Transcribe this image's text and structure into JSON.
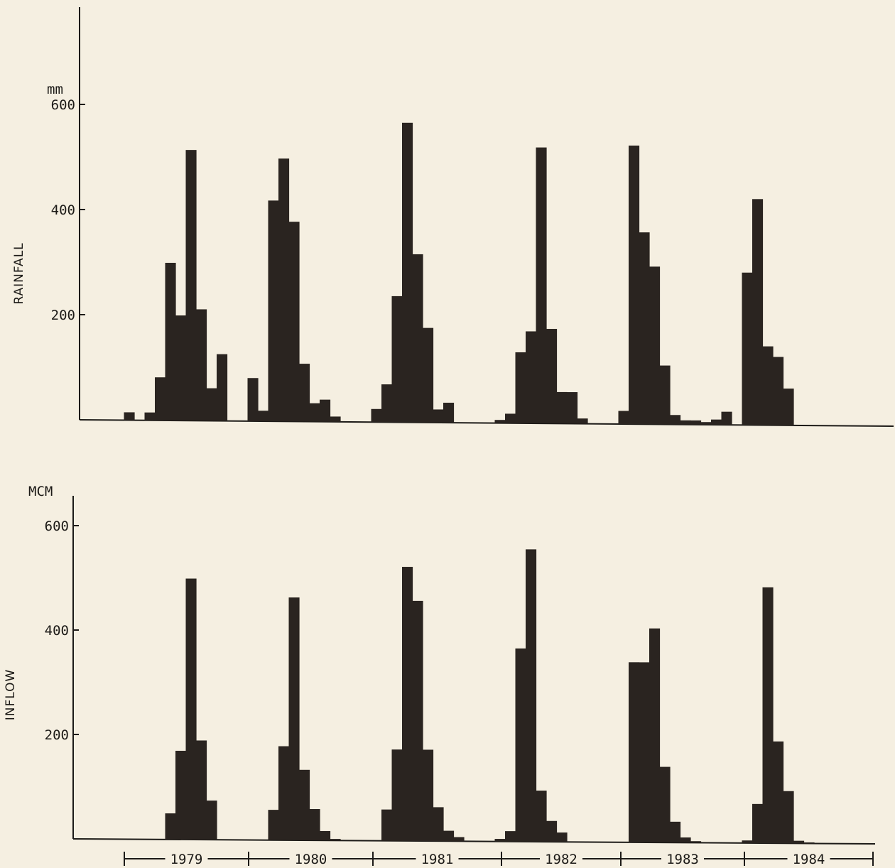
{
  "chart_data": [
    {
      "type": "bar",
      "ylabel": "RAINFALL",
      "unit": "mm",
      "yticks": [
        200,
        400,
        600
      ],
      "ylim": [
        0,
        790
      ],
      "xlabel_years": [
        "1979",
        "1980",
        "1981",
        "1982",
        "1983",
        "1984"
      ],
      "series": [
        {
          "values": [
            0,
            15,
            0,
            15,
            82,
            300,
            200,
            515,
            212,
            62,
            127,
            0,
            0,
            82,
            20,
            420,
            500,
            380,
            110,
            35,
            42,
            10,
            0,
            0,
            0,
            25,
            72,
            240,
            570,
            320,
            180,
            25,
            38,
            0,
            0,
            0,
            0,
            6,
            18,
            135,
            175,
            525,
            180,
            60,
            60,
            10,
            0,
            0,
            0,
            25,
            530,
            365,
            300,
            112,
            18,
            8,
            8,
            5,
            10,
            25,
            0,
            290,
            430,
            150,
            130,
            70,
            0
          ]
        }
      ]
    },
    {
      "type": "bar",
      "ylabel": "INFLOW",
      "unit": "MCM",
      "yticks": [
        200,
        400,
        600
      ],
      "ylim": [
        0,
        650
      ],
      "xlabel_years": [
        "1979",
        "1980",
        "1981",
        "1982",
        "1983",
        "1984"
      ],
      "series": [
        {
          "values": [
            0,
            0,
            0,
            0,
            0,
            50,
            170,
            500,
            190,
            75,
            0,
            0,
            0,
            0,
            0,
            58,
            180,
            465,
            135,
            60,
            18,
            3,
            0,
            0,
            0,
            0,
            60,
            175,
            525,
            460,
            175,
            65,
            20,
            8,
            0,
            0,
            0,
            5,
            20,
            370,
            560,
            98,
            40,
            18,
            0,
            0,
            0,
            0,
            0,
            0,
            345,
            345,
            410,
            145,
            40,
            10,
            3,
            0,
            0,
            0,
            0,
            5,
            75,
            490,
            195,
            100,
            5,
            2
          ]
        }
      ]
    }
  ]
}
